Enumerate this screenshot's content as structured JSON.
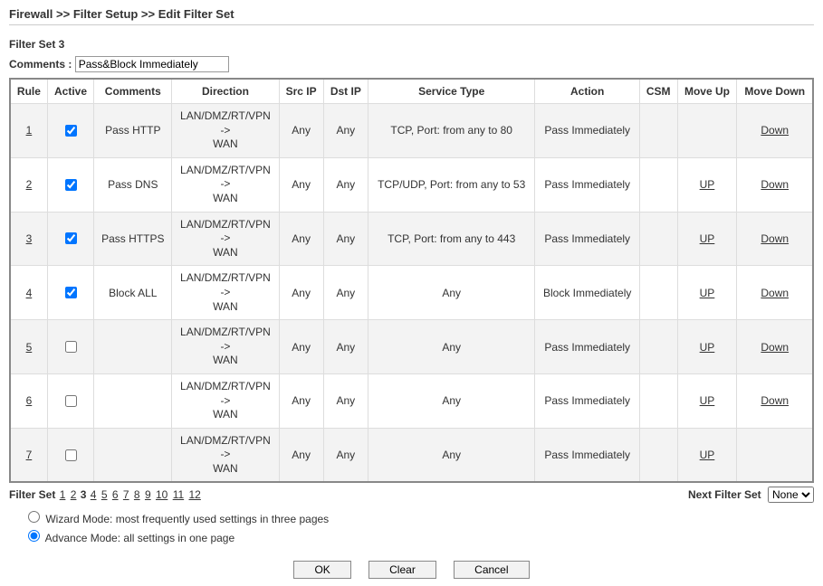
{
  "breadcrumb": "Firewall >> Filter Setup >> Edit Filter Set",
  "set_title": "Filter Set 3",
  "comments_label": "Comments :",
  "comments_value": "Pass&Block Immediately",
  "columns": {
    "rule": "Rule",
    "active": "Active",
    "comments": "Comments",
    "direction": "Direction",
    "srcip": "Src IP",
    "dstip": "Dst IP",
    "service": "Service Type",
    "action": "Action",
    "csm": "CSM",
    "moveup": "Move Up",
    "movedown": "Move Down"
  },
  "direction_label": {
    "l1": "LAN/DMZ/RT/VPN",
    "l2": "->",
    "l3": "WAN"
  },
  "link_up": "UP",
  "link_down": "Down",
  "rows": [
    {
      "idx": "1",
      "active": true,
      "comments": "Pass HTTP",
      "src": "Any",
      "dst": "Any",
      "service": "TCP, Port: from any to 80",
      "action": "Pass Immediately",
      "up": false,
      "down": true
    },
    {
      "idx": "2",
      "active": true,
      "comments": "Pass DNS",
      "src": "Any",
      "dst": "Any",
      "service": "TCP/UDP, Port: from any to 53",
      "action": "Pass Immediately",
      "up": true,
      "down": true
    },
    {
      "idx": "3",
      "active": true,
      "comments": "Pass HTTPS",
      "src": "Any",
      "dst": "Any",
      "service": "TCP, Port: from any to 443",
      "action": "Pass Immediately",
      "up": true,
      "down": true
    },
    {
      "idx": "4",
      "active": true,
      "comments": "Block ALL",
      "src": "Any",
      "dst": "Any",
      "service": "Any",
      "action": "Block Immediately",
      "up": true,
      "down": true
    },
    {
      "idx": "5",
      "active": false,
      "comments": "",
      "src": "Any",
      "dst": "Any",
      "service": "Any",
      "action": "Pass Immediately",
      "up": true,
      "down": true
    },
    {
      "idx": "6",
      "active": false,
      "comments": "",
      "src": "Any",
      "dst": "Any",
      "service": "Any",
      "action": "Pass Immediately",
      "up": true,
      "down": true
    },
    {
      "idx": "7",
      "active": false,
      "comments": "",
      "src": "Any",
      "dst": "Any",
      "service": "Any",
      "action": "Pass Immediately",
      "up": true,
      "down": false
    }
  ],
  "pager": {
    "label": "Filter Set",
    "pages": [
      "1",
      "2",
      "3",
      "4",
      "5",
      "6",
      "7",
      "8",
      "9",
      "10",
      "11",
      "12"
    ],
    "current": "3"
  },
  "next_filter": {
    "label": "Next Filter Set",
    "value": "None"
  },
  "modes": {
    "wizard": "Wizard Mode: most frequently used settings in three pages",
    "advance": "Advance Mode: all settings in one page",
    "selected": "advance"
  },
  "buttons": {
    "ok": "OK",
    "clear": "Clear",
    "cancel": "Cancel"
  }
}
